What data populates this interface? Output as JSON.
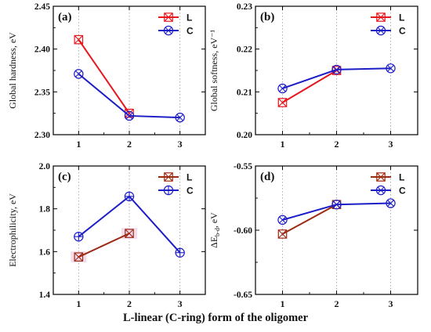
{
  "figure": {
    "xlabel": "L-linear (C-ring) form of the oligomer"
  },
  "chart_data": [
    {
      "panel": "(a)",
      "type": "line",
      "ylabel": "Global hardness, eV",
      "ylim": [
        2.3,
        2.45
      ],
      "yticks": [
        "2.30",
        "2.35",
        "2.40",
        "2.45"
      ],
      "xticks": [
        "1",
        "2",
        "3"
      ],
      "grid": "vertical dotted lines at x ticks",
      "legend_position": "top-right",
      "series": [
        {
          "name": "L",
          "x": [
            1,
            2
          ],
          "y": [
            2.411,
            2.325
          ],
          "color": "#e8161d",
          "marker": "boxed-x"
        },
        {
          "name": "C",
          "x": [
            1,
            2,
            3
          ],
          "y": [
            2.371,
            2.322,
            2.32
          ],
          "color": "#1d1dc8",
          "marker": "circled-x"
        }
      ]
    },
    {
      "panel": "(b)",
      "type": "line",
      "ylabel": "Global softness, eV⁻¹",
      "ylim": [
        0.2,
        0.23
      ],
      "yticks": [
        "0.20",
        "0.21",
        "0.22",
        "0.23"
      ],
      "xticks": [
        "1",
        "2",
        "3"
      ],
      "grid": "vertical dotted lines at x ticks",
      "legend_position": "top-right",
      "series": [
        {
          "name": "L",
          "x": [
            1,
            2
          ],
          "y": [
            0.2075,
            0.215
          ],
          "color": "#e8161d",
          "marker": "boxed-x"
        },
        {
          "name": "C",
          "x": [
            1,
            2,
            3
          ],
          "y": [
            0.2108,
            0.2152,
            0.2155
          ],
          "color": "#1d1dc8",
          "marker": "circled-x"
        }
      ]
    },
    {
      "panel": "(c)",
      "type": "line",
      "ylabel": "Electrophilicity, eV",
      "ylim": [
        1.4,
        2.0
      ],
      "yticks": [
        "1.4",
        "1.6",
        "1.8",
        "2.0"
      ],
      "xticks": [
        "1",
        "2",
        "3"
      ],
      "grid": "vertical dotted lines at x ticks",
      "legend_position": "top-right",
      "series": [
        {
          "name": "L",
          "x": [
            1,
            2
          ],
          "y": [
            1.575,
            1.685
          ],
          "color": "#9c2a12",
          "marker": "boxed-x"
        },
        {
          "name": "C",
          "x": [
            1,
            2,
            3
          ],
          "y": [
            1.67,
            1.858,
            1.595
          ],
          "color": "#1d1dc8",
          "marker": "circled-plus"
        }
      ]
    },
    {
      "panel": "(d)",
      "type": "line",
      "ylabel": "ΔE",
      "ylabel_sub": "b-d",
      "ylabel_suffix": ", eV",
      "ylim": [
        -0.65,
        -0.55
      ],
      "yticks": [
        "-0.65",
        "-0.60",
        "-0.55"
      ],
      "xticks": [
        "1",
        "2",
        "3"
      ],
      "grid": "vertical dotted lines at x ticks",
      "legend_position": "top-right",
      "series": [
        {
          "name": "L",
          "x": [
            1,
            2
          ],
          "y": [
            -0.603,
            -0.58
          ],
          "color": "#9c2a12",
          "marker": "boxed-x"
        },
        {
          "name": "C",
          "x": [
            1,
            2,
            3
          ],
          "y": [
            -0.592,
            -0.58,
            -0.579
          ],
          "color": "#1d1dc8",
          "marker": "circled-x"
        }
      ]
    }
  ]
}
